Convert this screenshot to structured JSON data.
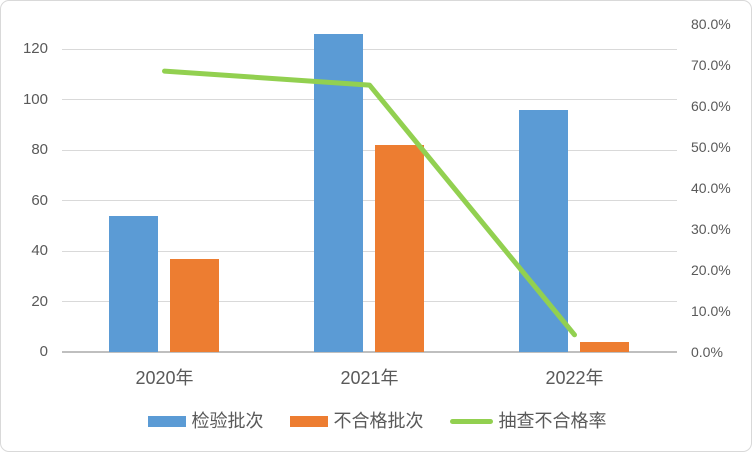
{
  "chart_data": {
    "type": "bar",
    "subtype": "combo-bar-line-dual-axis",
    "title": "",
    "categories": [
      "2020年",
      "2021年",
      "2022年"
    ],
    "series": [
      {
        "key": "inspection-batches",
        "name": "检验批次",
        "type": "bar",
        "axis": "left",
        "color": "#5B9BD5",
        "values": [
          54,
          126,
          96
        ]
      },
      {
        "key": "unqualified-batches",
        "name": "不合格批次",
        "type": "bar",
        "axis": "left",
        "color": "#ED7D31",
        "values": [
          37,
          82,
          4
        ]
      },
      {
        "key": "sampling-failure-rate",
        "name": "抽查不合格率",
        "type": "line",
        "axis": "right",
        "color": "#92D050",
        "values": [
          68.5,
          65.1,
          4.2
        ]
      }
    ],
    "left_axis": {
      "min": 0,
      "max": 130,
      "tick_step": 20,
      "ticks": [
        0,
        20,
        40,
        60,
        80,
        100,
        120
      ],
      "tick_labels": [
        "0",
        "20",
        "40",
        "60",
        "80",
        "100",
        "120"
      ]
    },
    "right_axis": {
      "min": 0,
      "max": 80,
      "tick_step": 10,
      "ticks": [
        0,
        10,
        20,
        30,
        40,
        50,
        60,
        70,
        80
      ],
      "tick_labels": [
        "0.0%",
        "10.0%",
        "20.0%",
        "30.0%",
        "40.0%",
        "50.0%",
        "60.0%",
        "70.0%",
        "80.0%"
      ]
    },
    "grid": true,
    "legend": {
      "position": "bottom",
      "entries": [
        "检验批次",
        "不合格批次",
        "抽查不合格率"
      ]
    }
  },
  "colors": {
    "background": "#FFFFFF",
    "border": "#D9D9D9",
    "gridline": "#D9D9D9",
    "axis_line": "#BFBFBF",
    "text": "#595959",
    "bar_blue": "#5B9BD5",
    "bar_orange": "#ED7D31",
    "line_green": "#92D050"
  }
}
